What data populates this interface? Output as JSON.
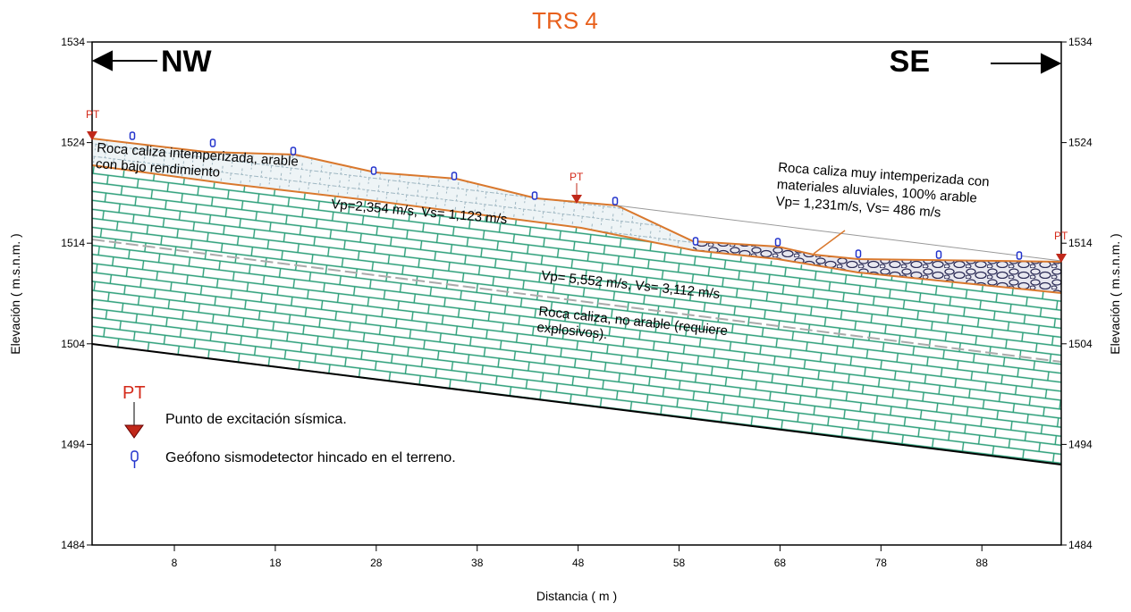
{
  "title": "TRS 4",
  "directions": {
    "left": "NW",
    "right": "SE"
  },
  "axes": {
    "y_label": "Elevación ( m.s.n.m. )",
    "x_label": "Distancia ( m )",
    "yticks": [
      1484,
      1494,
      1504,
      1514,
      1524,
      1534
    ],
    "xticks": [
      8,
      18,
      28,
      38,
      48,
      58,
      68,
      78,
      88
    ]
  },
  "annotations": [
    {
      "lines": [
        "Roca caliza intemperizada, arable",
        "con bajo rendimiento"
      ]
    },
    {
      "lines": [
        "Vp=2,354 m/s, Vs= 1,123 m/s"
      ]
    },
    {
      "lines": [
        "Roca caliza muy intemperizada con",
        "materiales aluviales, 100% arable",
        "Vp= 1,231m/s, Vs= 486 m/s"
      ]
    },
    {
      "lines": [
        "Vp= 5,552 m/s, Vs= 3,112 m/s"
      ]
    },
    {
      "lines": [
        "Roca caliza, no arable (requiere",
        "explosivos)."
      ]
    }
  ],
  "shot_points": [
    "PT",
    "PT",
    "PT"
  ],
  "legend": {
    "shot_symbol": "PT",
    "shot_text": "Punto de excitación sísmica.",
    "geophone_text": "Geófono sismodetector hincado en el terreno."
  }
}
